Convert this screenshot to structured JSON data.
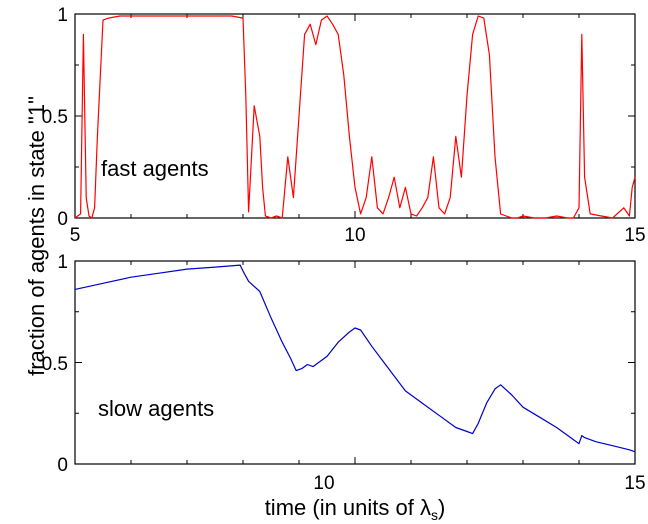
{
  "chart_data": [
    {
      "type": "line",
      "panel": "top",
      "annotation": "fast agents",
      "xlim": [
        5,
        15
      ],
      "ylim": [
        0,
        1
      ],
      "x_ticks": [
        "5",
        "10",
        "15"
      ],
      "y_ticks": [
        "0",
        "0.5",
        "1"
      ],
      "grid": false,
      "series": [
        {
          "color": "#ff0000",
          "x": [
            5.0,
            5.1,
            5.15,
            5.2,
            5.25,
            5.3,
            5.35,
            5.4,
            5.5,
            5.6,
            5.8,
            6.0,
            6.3,
            6.6,
            6.9,
            7.2,
            7.5,
            7.8,
            8.0,
            8.05,
            8.1,
            8.2,
            8.3,
            8.35,
            8.4,
            8.5,
            8.6,
            8.7,
            8.8,
            8.9,
            9.0,
            9.1,
            9.2,
            9.3,
            9.4,
            9.5,
            9.6,
            9.7,
            9.8,
            9.9,
            10.0,
            10.1,
            10.2,
            10.3,
            10.4,
            10.5,
            10.6,
            10.7,
            10.8,
            10.9,
            11.0,
            11.1,
            11.2,
            11.3,
            11.4,
            11.5,
            11.6,
            11.7,
            11.8,
            11.9,
            12.0,
            12.1,
            12.2,
            12.3,
            12.4,
            12.5,
            12.6,
            12.7,
            12.8,
            12.9,
            13.0,
            13.2,
            13.4,
            13.6,
            13.8,
            13.9,
            14.0,
            14.05,
            14.1,
            14.2,
            14.4,
            14.6,
            14.8,
            14.9,
            14.95,
            15.0
          ],
          "y": [
            0.0,
            0.02,
            0.9,
            0.1,
            0.01,
            0.0,
            0.05,
            0.4,
            0.97,
            0.98,
            0.99,
            0.99,
            0.99,
            0.99,
            0.99,
            0.99,
            0.99,
            0.99,
            0.98,
            0.6,
            0.03,
            0.55,
            0.4,
            0.15,
            0.01,
            0.0,
            0.01,
            0.0,
            0.3,
            0.1,
            0.5,
            0.9,
            0.95,
            0.85,
            0.97,
            0.99,
            0.95,
            0.9,
            0.7,
            0.4,
            0.15,
            0.02,
            0.1,
            0.3,
            0.05,
            0.02,
            0.1,
            0.2,
            0.05,
            0.15,
            0.02,
            0.01,
            0.05,
            0.1,
            0.3,
            0.05,
            0.02,
            0.1,
            0.4,
            0.2,
            0.6,
            0.9,
            0.99,
            0.98,
            0.8,
            0.3,
            0.02,
            0.01,
            0.0,
            0.0,
            0.01,
            0.0,
            0.0,
            0.01,
            0.0,
            0.0,
            0.05,
            0.9,
            0.2,
            0.02,
            0.01,
            0.0,
            0.05,
            0.01,
            0.15,
            0.2
          ]
        }
      ]
    },
    {
      "type": "line",
      "panel": "bottom",
      "annotation": "slow agents",
      "xlim": [
        5,
        15
      ],
      "ylim": [
        0,
        1
      ],
      "x_ticks": [
        "10",
        "15"
      ],
      "y_ticks": [
        "0",
        "0.5",
        "1"
      ],
      "xlabel_prefix": "time (in units of ",
      "xlabel_symbol": "λ",
      "xlabel_subscript": "s",
      "xlabel_suffix": ")",
      "grid": false,
      "series": [
        {
          "color": "#0000cc",
          "x": [
            5.0,
            5.5,
            6.0,
            6.5,
            7.0,
            7.5,
            7.95,
            8.0,
            8.1,
            8.3,
            8.5,
            8.7,
            8.85,
            8.95,
            9.05,
            9.15,
            9.25,
            9.35,
            9.5,
            9.7,
            9.9,
            10.0,
            10.1,
            10.3,
            10.6,
            10.9,
            11.2,
            11.5,
            11.8,
            12.0,
            12.1,
            12.2,
            12.35,
            12.5,
            12.6,
            12.8,
            13.0,
            13.3,
            13.6,
            13.9,
            14.0,
            14.05,
            14.1,
            14.3,
            14.6,
            14.9,
            15.0
          ],
          "y": [
            0.86,
            0.89,
            0.92,
            0.94,
            0.96,
            0.97,
            0.98,
            0.95,
            0.9,
            0.85,
            0.72,
            0.6,
            0.52,
            0.46,
            0.47,
            0.49,
            0.48,
            0.5,
            0.53,
            0.6,
            0.65,
            0.67,
            0.66,
            0.58,
            0.47,
            0.36,
            0.3,
            0.24,
            0.18,
            0.16,
            0.15,
            0.2,
            0.3,
            0.37,
            0.39,
            0.34,
            0.28,
            0.23,
            0.18,
            0.12,
            0.1,
            0.14,
            0.13,
            0.11,
            0.09,
            0.07,
            0.06
          ]
        }
      ]
    }
  ],
  "shared": {
    "ylabel": "fraction of agents in state \"1\""
  }
}
